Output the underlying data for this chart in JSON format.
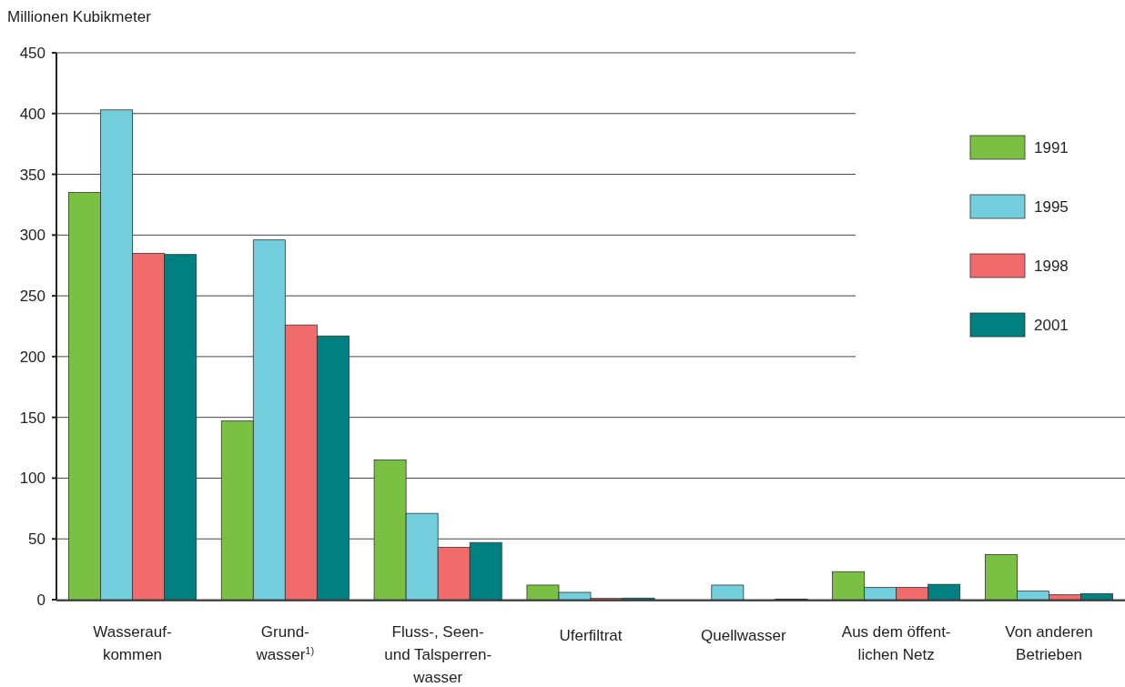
{
  "chart_data": {
    "type": "bar",
    "ylabel": "Millionen Kubikmeter",
    "categories": [
      "Wasserauf-\nkommen",
      "Grund-\nwasser$^{1)}$",
      "Fluss-, Seen-\nund Talsperren-\nwasser",
      "Uferfiltrat",
      "Quellwasser",
      "Aus dem öffent-\nlichen Netz",
      "Von anderen\nBetrieben"
    ],
    "series": [
      {
        "name": "1991",
        "color": "#7ac143",
        "values": [
          335,
          147,
          115,
          12,
          0,
          23,
          37
        ]
      },
      {
        "name": "1995",
        "color": "#72cedc",
        "values": [
          403,
          296,
          71,
          6,
          12,
          10,
          7
        ]
      },
      {
        "name": "1998",
        "color": "#f16a6c",
        "values": [
          285,
          226,
          43,
          1,
          0,
          10,
          4
        ]
      },
      {
        "name": "2001",
        "color": "#008080",
        "values": [
          284,
          217,
          47,
          1.3,
          0.5,
          12.6,
          5
        ]
      }
    ],
    "ylim": [
      0,
      450
    ],
    "yticks": [
      0,
      50,
      100,
      150,
      200,
      250,
      300,
      350,
      400,
      450
    ],
    "grid": "y",
    "legend": "top right"
  }
}
